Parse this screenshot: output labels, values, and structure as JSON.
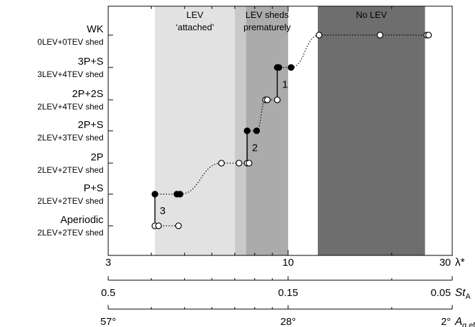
{
  "chart_data": {
    "type": "scatter",
    "title": "",
    "x_scale": "log",
    "xlim": [
      3,
      30
    ],
    "regions": [
      {
        "name": "band-attached",
        "label_lines": [
          "LEV",
          "‘attached’"
        ],
        "x_from": 4.1,
        "x_to": 7.0,
        "color": "#e2e2e2",
        "text_color": "#000000"
      },
      {
        "name": "band-transition",
        "label_lines": [],
        "x_from": 7.0,
        "x_to": 7.55,
        "color": "#c9c9c9",
        "text_color": "#000000"
      },
      {
        "name": "band-sheds-prematurely",
        "label_lines": [
          "LEV sheds",
          "prematurely"
        ],
        "x_from": 7.55,
        "x_to": 10.0,
        "color": "#ababab",
        "text_color": "#000000"
      },
      {
        "name": "band-no-lev",
        "label_lines": [
          "No LEV"
        ],
        "x_from": 12.2,
        "x_to": 25.0,
        "color": "#6e6e6e",
        "text_color": "#ffffff"
      }
    ],
    "modes": [
      {
        "label": "WK",
        "sub": "0LEV+0TEV shed"
      },
      {
        "label": "3P+S",
        "sub": "3LEV+4TEV shed"
      },
      {
        "label": "2P+2S",
        "sub": "2LEV+4TEV shed"
      },
      {
        "label": "2P+S",
        "sub": "2LEV+3TEV shed"
      },
      {
        "label": "2P",
        "sub": "2LEV+2TEV shed"
      },
      {
        "label": "P+S",
        "sub": "2LEV+2TEV shed"
      },
      {
        "label": "Aperiodic",
        "sub": "2LEV+2TEV shed"
      }
    ],
    "series": [
      {
        "filled": false,
        "points": [
          {
            "x": 4.1,
            "mode": "Aperiodic"
          },
          {
            "x": 4.2,
            "mode": "Aperiodic"
          },
          {
            "x": 4.8,
            "mode": "Aperiodic"
          },
          {
            "x": 6.4,
            "mode": "2P"
          },
          {
            "x": 7.2,
            "mode": "2P"
          },
          {
            "x": 7.6,
            "mode": "2P"
          },
          {
            "x": 7.7,
            "mode": "2P"
          },
          {
            "x": 8.6,
            "mode": "2P+2S"
          },
          {
            "x": 8.7,
            "mode": "2P+2S"
          },
          {
            "x": 9.3,
            "mode": "2P+2S"
          },
          {
            "x": 12.3,
            "mode": "WK"
          },
          {
            "x": 18.5,
            "mode": "WK"
          },
          {
            "x": 25.3,
            "mode": "WK"
          },
          {
            "x": 25.6,
            "mode": "WK"
          }
        ]
      },
      {
        "filled": true,
        "points": [
          {
            "x": 4.1,
            "mode": "P+S"
          },
          {
            "x": 4.75,
            "mode": "P+S"
          },
          {
            "x": 4.85,
            "mode": "P+S"
          },
          {
            "x": 7.6,
            "mode": "2P+S"
          },
          {
            "x": 8.1,
            "mode": "2P+S"
          },
          {
            "x": 9.3,
            "mode": "3P+S"
          },
          {
            "x": 9.4,
            "mode": "3P+S"
          },
          {
            "x": 10.2,
            "mode": "3P+S"
          }
        ]
      }
    ],
    "connectors": [
      {
        "label": "1",
        "x": 9.3,
        "from_mode": "2P+2S",
        "to_mode": "3P+S"
      },
      {
        "label": "2",
        "x": 7.6,
        "from_mode": "2P",
        "to_mode": "2P+S"
      },
      {
        "label": "3",
        "x": 4.1,
        "from_mode": "Aperiodic",
        "to_mode": "P+S"
      }
    ],
    "axes": [
      {
        "name": "lambda-axis",
        "label": "λ*",
        "ticks": [
          "3",
          "10",
          "30"
        ],
        "tick_values": [
          3,
          10,
          30
        ]
      },
      {
        "name": "st-axis",
        "label": "St",
        "label_sub": "A",
        "ticks": [
          "0.5",
          "0.15",
          "0.05"
        ],
        "tick_values": [
          3,
          10,
          30
        ]
      },
      {
        "name": "alpha-axis",
        "label": "A",
        "label_sub": "α,eff",
        "ticks": [
          "57°",
          "28°",
          "2°"
        ],
        "tick_values": [
          3,
          10,
          30
        ]
      }
    ]
  }
}
